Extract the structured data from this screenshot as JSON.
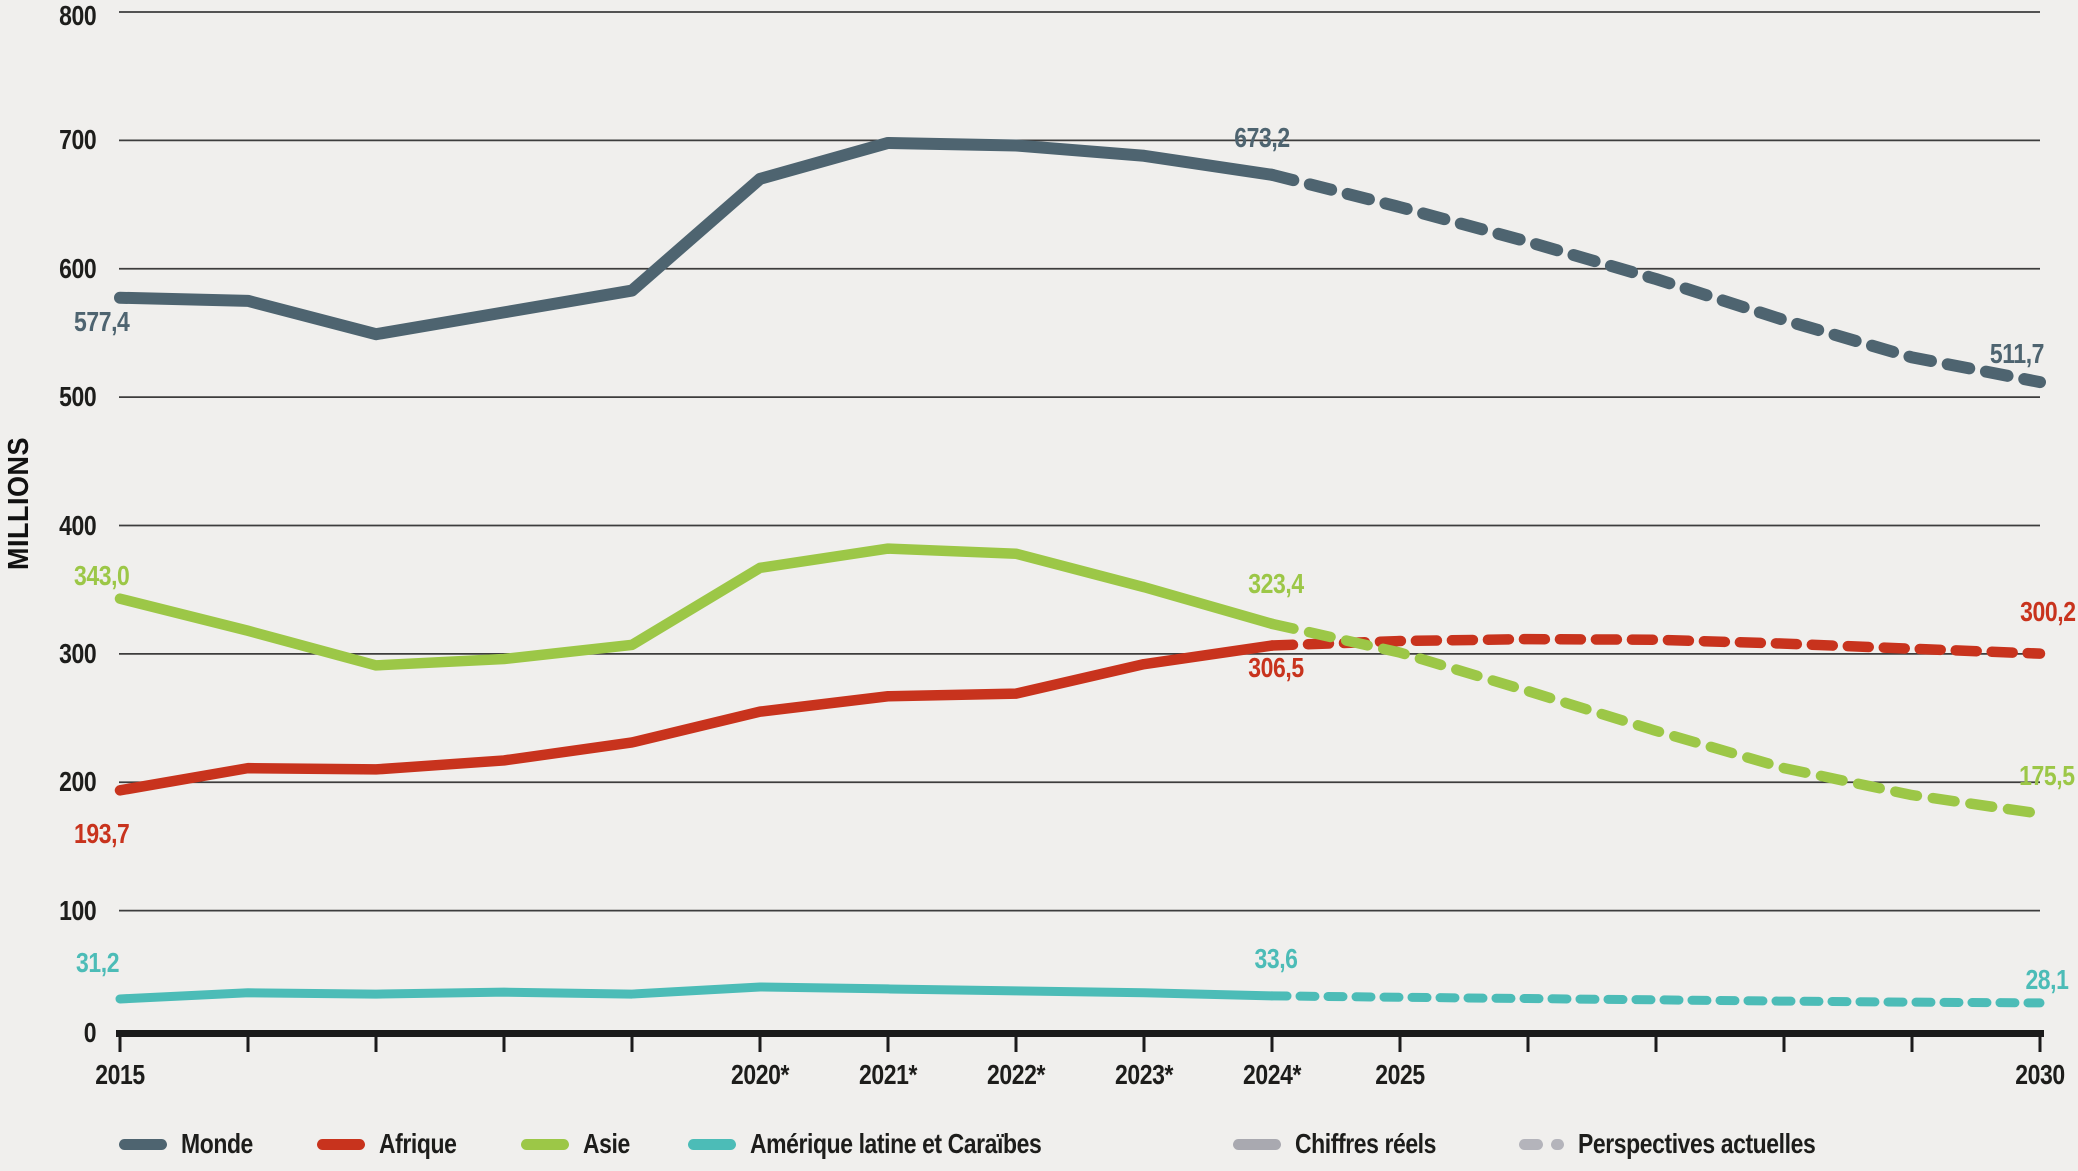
{
  "figure": {
    "y_axis_label": "MILLIONS",
    "y_ticks": [
      {
        "v": 800,
        "t": "800"
      },
      {
        "v": 700,
        "t": "700"
      },
      {
        "v": 600,
        "t": "600"
      },
      {
        "v": 500,
        "t": "500"
      },
      {
        "v": 400,
        "t": "400"
      },
      {
        "v": 300,
        "t": "300"
      },
      {
        "v": 200,
        "t": "200"
      },
      {
        "v": 100,
        "t": "100"
      },
      {
        "v": 0,
        "t": "0"
      }
    ],
    "x_labels": [
      {
        "year": 2015,
        "t": "2015"
      },
      {
        "year": 2020,
        "t": "2020*"
      },
      {
        "year": 2021,
        "t": "2021*"
      },
      {
        "year": 2022,
        "t": "2022*"
      },
      {
        "year": 2023,
        "t": "2023*"
      },
      {
        "year": 2024,
        "t": "2024*"
      },
      {
        "year": 2025,
        "t": "2025"
      },
      {
        "year": 2030,
        "t": "2030"
      }
    ]
  },
  "chart_data": {
    "type": "line",
    "ylabel": "MILLIONS",
    "ylim": [
      0,
      800
    ],
    "x": [
      2015,
      2016,
      2017,
      2018,
      2019,
      2020,
      2021,
      2022,
      2023,
      2024,
      2025,
      2026,
      2027,
      2028,
      2029,
      2030
    ],
    "actual_through_year": 2024,
    "grid": "horizontal",
    "legend_position": "bottom",
    "series": [
      {
        "name": "Monde",
        "color": "#4e6470",
        "values": [
          577.4,
          575,
          549,
          566,
          583,
          670,
          698,
          696,
          688,
          673.2,
          648,
          621,
          592,
          560,
          531,
          511.7
        ],
        "label_start": "577,4",
        "label_2024": "673,2",
        "label_2030": "511,7"
      },
      {
        "name": "Afrique",
        "color": "#c8331d",
        "values": [
          193.7,
          211,
          210,
          217,
          231,
          255,
          267,
          269,
          292,
          306.5,
          310,
          311.5,
          311,
          308,
          304,
          300.2
        ],
        "label_start": "193,7",
        "label_2024": "306,5",
        "label_2030": "300,2"
      },
      {
        "name": "Asie",
        "color": "#9cc747",
        "values": [
          343.0,
          318,
          291,
          296,
          307,
          367,
          382,
          378,
          352,
          323.4,
          301,
          271,
          240,
          211,
          190,
          175.5
        ],
        "label_start": "343,0",
        "label_2024": "323,4",
        "label_2030": "175,5"
      },
      {
        "name": "Amérique latine et Caraïbes",
        "color": "#4cbcb7",
        "values": [
          31.2,
          36,
          35,
          36.5,
          35,
          40.5,
          39,
          37.5,
          36,
          33.6,
          32.5,
          31.5,
          30.5,
          29.5,
          28.7,
          28.1
        ],
        "label_start": "31,2",
        "label_2024": "33,6",
        "label_2030": "28,1"
      }
    ],
    "segment_legend": [
      {
        "label": "Chiffres réels",
        "style": "solid",
        "color": "#a9a9b0"
      },
      {
        "label": "Perspectives actuelles",
        "style": "dashed",
        "color": "#b4b4bb"
      }
    ]
  },
  "colors": {
    "background": "#f0efed",
    "gridline": "#3d3d3d",
    "axis": "#1b1b1b",
    "text": "#1d1d1b"
  }
}
